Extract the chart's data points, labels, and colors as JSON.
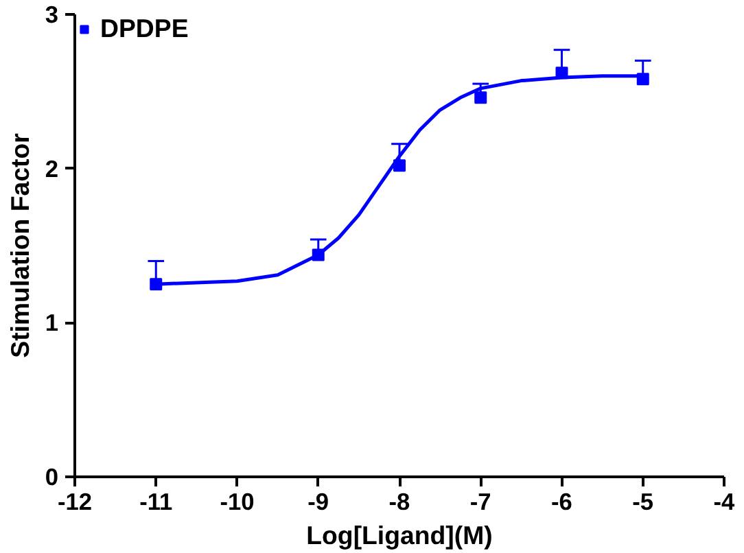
{
  "chart_data": {
    "type": "scatter",
    "xlabel": "Log[Ligand](M)",
    "ylabel": "Stimulation Factor",
    "x": [
      -11,
      -9,
      -8,
      -7,
      -6,
      -5
    ],
    "series": [
      {
        "name": "DPDPE",
        "color": "#0000ff",
        "marker": "square",
        "values": [
          1.25,
          1.44,
          2.02,
          2.46,
          2.62,
          2.58
        ],
        "errors": [
          [
            1.25,
            1.4
          ],
          [
            1.44,
            1.54
          ],
          [
            2.02,
            2.16
          ],
          [
            2.46,
            2.55
          ],
          [
            2.62,
            2.77
          ],
          [
            2.58,
            2.7
          ]
        ]
      },
      {
        "type": "line",
        "color": "#0000ff",
        "marker": "none",
        "line_style": "solid",
        "x": [
          -11,
          -10.5,
          -10,
          -9.5,
          -9,
          -8.75,
          -8.5,
          -8.25,
          -8,
          -7.75,
          -7.5,
          -7.25,
          -7,
          -6.5,
          -6,
          -5.5,
          -5
        ],
        "values": [
          1.25,
          1.26,
          1.27,
          1.31,
          1.44,
          1.55,
          1.7,
          1.89,
          2.08,
          2.25,
          2.38,
          2.46,
          2.52,
          2.57,
          2.59,
          2.6,
          2.6
        ]
      }
    ],
    "xlim": [
      -12,
      -4
    ],
    "xticks": [
      -12,
      -11,
      -10,
      -9,
      -8,
      -7,
      -6,
      -5,
      -4
    ],
    "ylim": [
      0,
      3
    ],
    "yticks": [
      0,
      1,
      2,
      3
    ],
    "grid": false,
    "legend": "top left"
  }
}
